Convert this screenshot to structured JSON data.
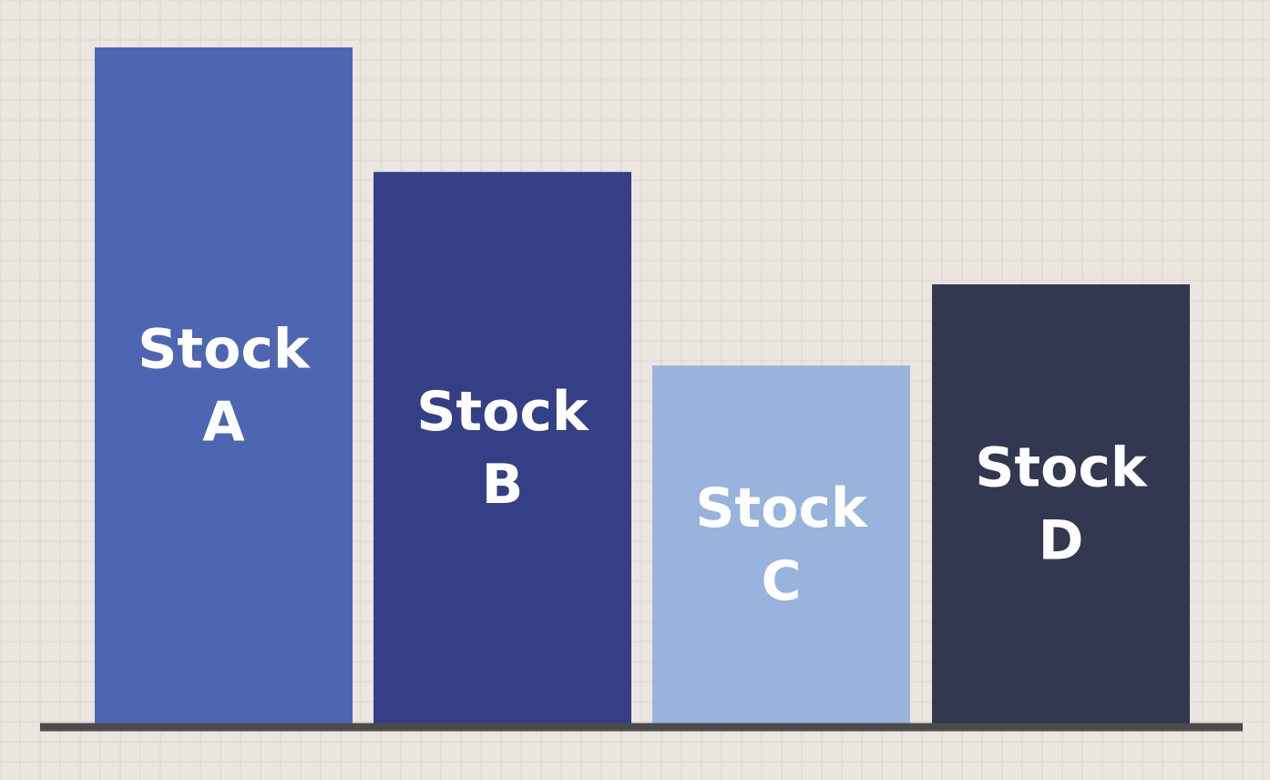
{
  "chart_data": {
    "type": "bar",
    "categories": [
      "Stock A",
      "Stock B",
      "Stock C",
      "Stock D"
    ],
    "label_lines": [
      [
        "Stock",
        "A"
      ],
      [
        "Stock",
        "B"
      ],
      [
        "Stock",
        "C"
      ],
      [
        "Stock",
        "D"
      ]
    ],
    "values": [
      100,
      81.6,
      53,
      65
    ],
    "ylim": [
      0,
      100
    ],
    "title": "",
    "xlabel": "",
    "ylabel": "",
    "grid": true,
    "legend": "none"
  },
  "colors": {
    "background": "#ebe6df",
    "grid": "#ddd7cf",
    "axis": "#4b4b4b",
    "bars": [
      "#4e66b1",
      "#343f86",
      "#98b3dc",
      "#33374f"
    ],
    "label": "#ffffff"
  }
}
